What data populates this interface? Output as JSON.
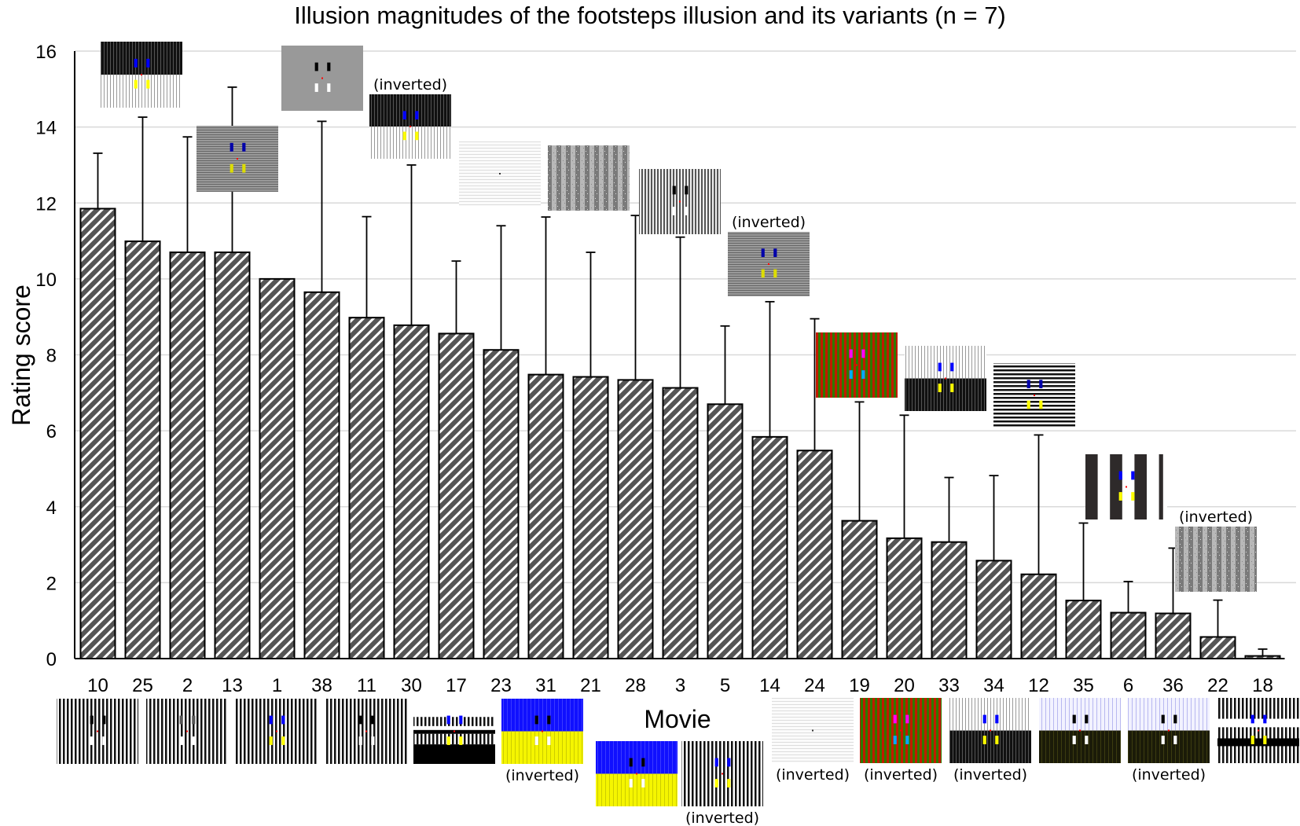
{
  "chart_data": {
    "type": "bar",
    "title": "Illusion magnitudes of the footsteps illusion and its variants (n = 7)",
    "xlabel": "",
    "ylabel": "Rating score",
    "ylim": [
      0,
      16
    ],
    "yticks": [
      0,
      2,
      4,
      6,
      8,
      10,
      12,
      14,
      16
    ],
    "grid": true,
    "bar_fill": "diagonal-hatch",
    "bar_colors": {
      "hatch_dark": "#555555",
      "hatch_light": "#ffffff",
      "edge": "#000000",
      "grid": "#d9d9d9"
    },
    "categories": [
      "10",
      "25",
      "2",
      "13",
      "1",
      "38",
      "11",
      "30",
      "17",
      "23",
      "31",
      "21",
      "28",
      "3",
      "5",
      "14",
      "24",
      "19",
      "20",
      "33",
      "34",
      "12",
      "35",
      "6",
      "36",
      "22",
      "18"
    ],
    "values": [
      11.85,
      10.99,
      10.7,
      10.7,
      10.0,
      9.65,
      8.98,
      8.78,
      8.56,
      8.13,
      7.48,
      7.42,
      7.34,
      7.13,
      6.7,
      5.84,
      5.48,
      3.63,
      3.17,
      3.07,
      2.58,
      2.22,
      1.53,
      1.21,
      1.19,
      0.57,
      0.07
    ],
    "error_upper": [
      13.31,
      14.26,
      13.74,
      15.05,
      10.0,
      14.15,
      11.64,
      13.0,
      10.47,
      11.4,
      11.63,
      10.7,
      11.67,
      11.1,
      8.76,
      9.4,
      8.95,
      6.76,
      6.41,
      4.77,
      4.82,
      5.89,
      3.57,
      2.03,
      2.91,
      1.54,
      0.25
    ]
  },
  "insets_top": [
    {
      "id": "ins-25",
      "bar": "25",
      "note": "",
      "kind": "black-top-white-bottom-grating",
      "marks": [
        "#0000ff",
        "#ffff00"
      ]
    },
    {
      "id": "ins-38",
      "bar": "38",
      "note": "",
      "kind": "gray-uniform",
      "marks": [
        "#000000",
        "#ffffff"
      ]
    },
    {
      "id": "ins-13",
      "bar": "13",
      "note": "",
      "kind": "gray-horizontal-grating",
      "marks": [
        "#0000aa",
        "#dddd00"
      ]
    },
    {
      "id": "ins-30",
      "bar": "30",
      "note": "(inverted)",
      "kind": "black-top-white-bottom-grating",
      "marks": [
        "#0000ff",
        "#ffff00"
      ]
    },
    {
      "id": "ins-23",
      "bar": "23",
      "note": "",
      "kind": "faint-horizontal-grating",
      "marks": []
    },
    {
      "id": "ins-21",
      "bar": "21",
      "note": "",
      "kind": "noise-grating",
      "marks": []
    },
    {
      "id": "ins-3",
      "bar": "3",
      "note": "",
      "kind": "gray-vertical-grating",
      "marks": [
        "#000000",
        "#ffffff"
      ]
    },
    {
      "id": "ins-14",
      "bar": "14",
      "note": "(inverted)",
      "kind": "gray-horizontal-grating",
      "marks": [
        "#0000aa",
        "#dddd00"
      ]
    },
    {
      "id": "ins-19",
      "bar": "19",
      "note": "",
      "kind": "red-green-grating",
      "marks": [
        "#ff00ff",
        "#00aaff"
      ]
    },
    {
      "id": "ins-20",
      "bar": "20",
      "note": "",
      "kind": "white-top-black-bottom-grating",
      "marks": [
        "#0000ff",
        "#ffff00"
      ]
    },
    {
      "id": "ins-33",
      "bar": "33",
      "note": "",
      "kind": "horizontal-black-white-grating",
      "marks": [
        "#0000aa",
        "#ffff00"
      ]
    },
    {
      "id": "ins-35",
      "bar": "35",
      "note": "",
      "kind": "wide-dark-bars",
      "marks": [
        "#0000ff",
        "#ffff00"
      ]
    },
    {
      "id": "ins-36",
      "bar": "36",
      "note": "(inverted)",
      "kind": "noise-grating",
      "marks": []
    }
  ],
  "insets_bottom": [
    {
      "id": "bot-10",
      "bar": "10",
      "note": "",
      "kind": "black-white-grating",
      "marks": [
        "#000000",
        "#ffffff"
      ]
    },
    {
      "id": "bot-2",
      "bar": "2",
      "note": "",
      "kind": "black-white-grating",
      "marks": [
        "#555555",
        "#ffffff"
      ]
    },
    {
      "id": "bot-1",
      "bar": "1",
      "note": "",
      "kind": "black-white-grating",
      "marks": [
        "#0000ff",
        "#ffff00"
      ]
    },
    {
      "id": "bot-11",
      "bar": "11",
      "note": "",
      "kind": "black-white-grating",
      "marks": [
        "#000000",
        "#ffffff"
      ]
    },
    {
      "id": "bot-17",
      "bar": "17",
      "note": "",
      "kind": "split-strips",
      "marks": [
        "#0000ff",
        "#ffff00"
      ]
    },
    {
      "id": "bot-31",
      "bar": "31",
      "note": "(inverted)",
      "kind": "blue-yellow-grating",
      "marks": [
        "#000000",
        "#ffffff"
      ]
    },
    {
      "id": "bot-28",
      "bar": "28",
      "note": "",
      "kind": "blue-yellow-grating",
      "marks": [
        "#000000",
        "#ffffff"
      ]
    },
    {
      "id": "bot-3",
      "bar": "3",
      "note": "(inverted)",
      "kind": "black-white-grating",
      "marks": [
        "#0000ff",
        "#ffff00"
      ]
    },
    {
      "id": "bot-24",
      "bar": "24",
      "note": "(inverted)",
      "kind": "faint-horizontal-grating",
      "marks": []
    },
    {
      "id": "bot-20",
      "bar": "20",
      "note": "(inverted)",
      "kind": "red-green-grating",
      "marks": [
        "#ff00ff",
        "#00aaff"
      ]
    },
    {
      "id": "bot-34",
      "bar": "34",
      "note": "(inverted)",
      "kind": "white-top-black-bottom-grating",
      "marks": [
        "#0000ff",
        "#ffff00"
      ]
    },
    {
      "id": "bot-35",
      "bar": "35",
      "note": "",
      "kind": "lavender-top-olive-bottom-grating",
      "marks": [
        "#000000",
        "#ffffff"
      ]
    },
    {
      "id": "bot-36",
      "bar": "36",
      "note": "(inverted)",
      "kind": "lavender-top-olive-bottom-grating",
      "marks": [
        "#000000",
        "#ffffff"
      ]
    },
    {
      "id": "bot-18",
      "bar": "18",
      "note": "",
      "kind": "split-black-band",
      "marks": [
        "#0000ff",
        "#ffff00"
      ]
    }
  ],
  "movie_label": "Movie"
}
